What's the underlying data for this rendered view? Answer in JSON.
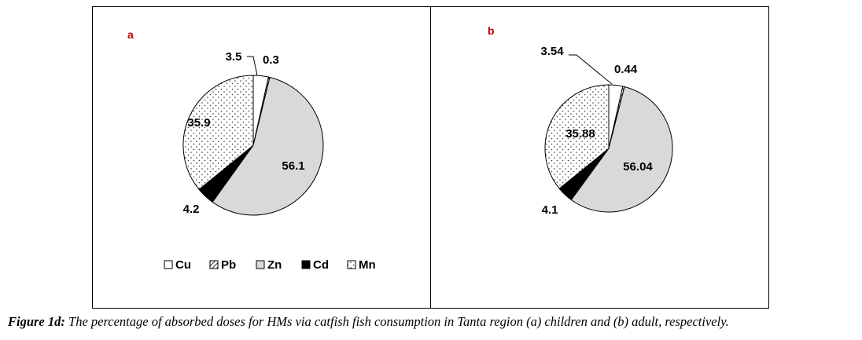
{
  "chart_data": [
    {
      "type": "pie",
      "panel_label": "a",
      "categories": [
        "Cu",
        "Pb",
        "Zn",
        "Cd",
        "Mn"
      ],
      "values": [
        3.5,
        0.3,
        56.1,
        4.2,
        35.9
      ],
      "data_labels": [
        "3.5",
        "0.3",
        "56.1",
        "4.2",
        "35.9"
      ],
      "legend": {
        "placement": "bottom",
        "entries": [
          "Cu",
          "Pb",
          "Zn",
          "Cd",
          "Mn"
        ]
      }
    },
    {
      "type": "pie",
      "panel_label": "b",
      "categories": [
        "Cu",
        "Pb",
        "Zn",
        "Cd",
        "Mn"
      ],
      "values": [
        3.54,
        0.44,
        56.04,
        4.1,
        35.88
      ],
      "data_labels": [
        "3.54",
        "0.44",
        "56.04",
        "4.1",
        "35.88"
      ]
    }
  ],
  "series_styles": {
    "Cu": {
      "fill": "#ffffff",
      "pattern": "none"
    },
    "Pb": {
      "fill": "#ffffff",
      "pattern": "diagonal-hatch"
    },
    "Zn": {
      "fill": "#d9d9d9",
      "pattern": "none"
    },
    "Cd": {
      "fill": "#000000",
      "pattern": "none"
    },
    "Mn": {
      "fill": "#ffffff",
      "pattern": "dots"
    }
  },
  "panel_label_color": "#c00000",
  "caption": {
    "bold": "Figure 1d:",
    "text": " The percentage of absorbed doses for HMs via catfish fish consumption in Tanta region (a) children and (b) adult, respectively."
  }
}
